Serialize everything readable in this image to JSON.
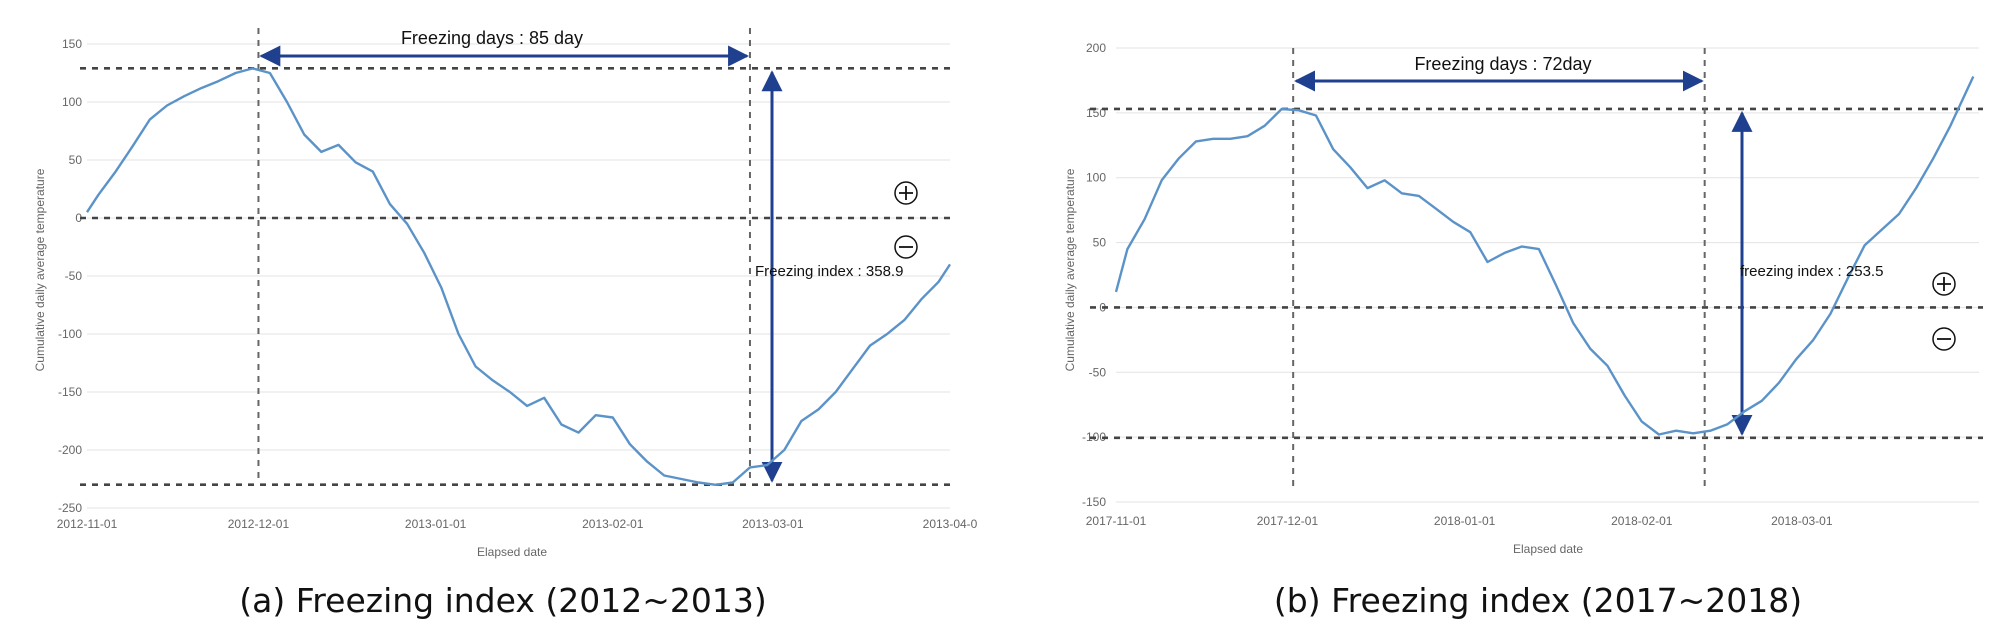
{
  "chart_data": [
    {
      "type": "line",
      "caption": "(a) Freezing index (2012~2013)",
      "xlabel": "Elapsed date",
      "ylabel": "Cumulative daily average temperature",
      "ylim": [
        -250,
        150
      ],
      "yticks": [
        150,
        100,
        50,
        0,
        -50,
        -100,
        -150,
        -200,
        -250
      ],
      "x_start": "2012-11-01",
      "x_end": "2013-04-01",
      "xtick_labels": [
        "2012-11-01",
        "2012-12-01",
        "2013-01-01",
        "2013-02-01",
        "2013-03-01",
        "2013-04-0"
      ],
      "xtick_days": [
        0,
        30,
        61,
        92,
        120,
        151
      ],
      "grid": true,
      "line_color": "#5b93c9",
      "annotation_color": "#1f3f8f",
      "series": [
        {
          "x": [
            "2012-11-01",
            "2012-11-03",
            "2012-11-06",
            "2012-11-09",
            "2012-11-12",
            "2012-11-15",
            "2012-11-18",
            "2012-11-21",
            "2012-11-24",
            "2012-11-27",
            "2012-11-30",
            "2012-12-03",
            "2012-12-06",
            "2012-12-09",
            "2012-12-12",
            "2012-12-15",
            "2012-12-18",
            "2012-12-21",
            "2012-12-24",
            "2012-12-27",
            "2012-12-30",
            "2013-01-02",
            "2013-01-05",
            "2013-01-08",
            "2013-01-11",
            "2013-01-14",
            "2013-01-17",
            "2013-01-20",
            "2013-01-23",
            "2013-01-26",
            "2013-01-29",
            "2013-02-01",
            "2013-02-04",
            "2013-02-07",
            "2013-02-10",
            "2013-02-13",
            "2013-02-16",
            "2013-02-19",
            "2013-02-22",
            "2013-02-25",
            "2013-02-28",
            "2013-03-03",
            "2013-03-06",
            "2013-03-09",
            "2013-03-12",
            "2013-03-15",
            "2013-03-18",
            "2013-03-21",
            "2013-03-24",
            "2013-03-27",
            "2013-03-30",
            "2013-04-01"
          ],
          "values": [
            5,
            20,
            40,
            62,
            85,
            97,
            105,
            112,
            118,
            125,
            129,
            125,
            100,
            72,
            57,
            63,
            48,
            40,
            12,
            -5,
            -30,
            -60,
            -100,
            -128,
            -140,
            -150,
            -162,
            -155,
            -178,
            -185,
            -170,
            -172,
            -195,
            -210,
            -222,
            -225,
            -228,
            -230,
            -228,
            -215,
            -213,
            -200,
            -175,
            -165,
            -150,
            -130,
            -110,
            -100,
            -88,
            -70,
            -55,
            -40
          ]
        }
      ],
      "freezing_days": {
        "label": "Freezing days : 85 day",
        "start": "2012-12-01",
        "end": "2013-02-25"
      },
      "freezing_index": {
        "label": "Freezing index : 358.9",
        "top": 129,
        "bottom": -229.9
      }
    },
    {
      "type": "line",
      "caption": "(b) Freezing index (2017~2018)",
      "xlabel": "Elapsed date",
      "ylabel": "Cumulative daily average temperature",
      "ylim": [
        -150,
        200
      ],
      "yticks": [
        200,
        150,
        100,
        50,
        0,
        -50,
        -100,
        -150
      ],
      "x_start": "2017-11-01",
      "x_end": "2018-03-31",
      "xtick_labels": [
        "2017-11-01",
        "2017-12-01",
        "2018-01-01",
        "2018-02-01",
        "2018-03-01"
      ],
      "xtick_days": [
        0,
        30,
        61,
        92,
        120
      ],
      "grid": true,
      "line_color": "#5b93c9",
      "annotation_color": "#1f3f8f",
      "series": [
        {
          "x": [
            "2017-11-01",
            "2017-11-03",
            "2017-11-06",
            "2017-11-09",
            "2017-11-12",
            "2017-11-15",
            "2017-11-18",
            "2017-11-21",
            "2017-11-24",
            "2017-11-27",
            "2017-11-30",
            "2017-12-03",
            "2017-12-06",
            "2017-12-09",
            "2017-12-12",
            "2017-12-15",
            "2017-12-18",
            "2017-12-21",
            "2017-12-24",
            "2017-12-27",
            "2017-12-30",
            "2018-01-02",
            "2018-01-05",
            "2018-01-08",
            "2018-01-11",
            "2018-01-14",
            "2018-01-17",
            "2018-01-20",
            "2018-01-23",
            "2018-01-26",
            "2018-01-29",
            "2018-02-01",
            "2018-02-04",
            "2018-02-07",
            "2018-02-10",
            "2018-02-13",
            "2018-02-16",
            "2018-02-19",
            "2018-02-22",
            "2018-02-25",
            "2018-02-28",
            "2018-03-03",
            "2018-03-06",
            "2018-03-09",
            "2018-03-12",
            "2018-03-15",
            "2018-03-18",
            "2018-03-21",
            "2018-03-24",
            "2018-03-27",
            "2018-03-31"
          ],
          "values": [
            12,
            45,
            68,
            98,
            115,
            128,
            130,
            130,
            132,
            140,
            153,
            152,
            148,
            122,
            108,
            92,
            98,
            88,
            86,
            76,
            66,
            58,
            35,
            42,
            47,
            45,
            17,
            -12,
            -32,
            -45,
            -68,
            -88,
            -98,
            -95,
            -97,
            -95,
            -90,
            -80,
            -72,
            -58,
            -40,
            -25,
            -5,
            22,
            48,
            60,
            72,
            92,
            115,
            140,
            178
          ]
        }
      ],
      "freezing_days": {
        "label": "Freezing days : 72day",
        "start": "2017-12-02",
        "end": "2018-02-12"
      },
      "freezing_index": {
        "label": "freezing index :  253.5",
        "top": 153,
        "bottom": -100.5
      }
    }
  ]
}
